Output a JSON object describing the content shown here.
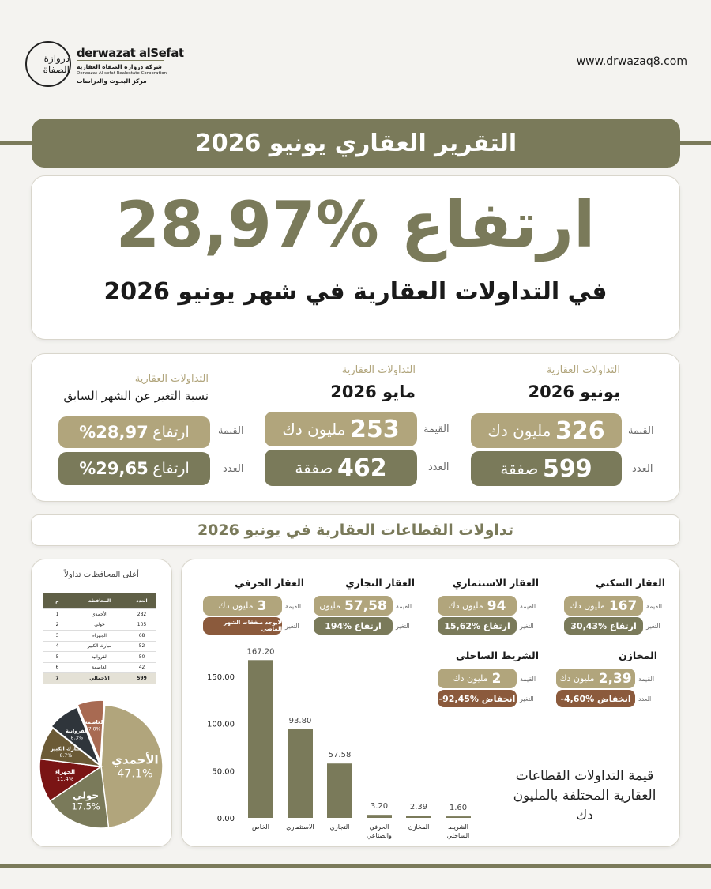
{
  "header": {
    "brand": "derwazat alSefat",
    "company_ar": "شركة دروازة الصفاة العقارية",
    "company_en": "Derwazat Al-sefat Realestate Corporation",
    "dept_ar": "مركز البحوث والدراسات",
    "website": "www.drwazaq8.com",
    "logo_text": "دروازة الصفاة"
  },
  "title": "التقرير العقاري يونيو 2026",
  "hero": {
    "headline": "ارتفاع %28,97",
    "subline": "في التداولات العقارية في شهر يونيو 2026"
  },
  "comparison": {
    "june": {
      "caption": "التداولات العقارية",
      "period": "يونيو 2026",
      "value_label": "القيمة",
      "value_num": "326",
      "value_unit": "مليون دك",
      "count_label": "العدد",
      "count_num": "599",
      "count_unit": "صفقة"
    },
    "may": {
      "caption": "التداولات العقارية",
      "period": "مايو 2026",
      "value_label": "القيمة",
      "value_num": "253",
      "value_unit": "مليون دك",
      "count_label": "العدد",
      "count_num": "462",
      "count_unit": "صفقة"
    },
    "change": {
      "caption": "التداولات العقارية",
      "period": "نسبة التغير عن الشهر السابق",
      "value_label": "القيمة",
      "value_word": "ارتفاع",
      "value_num": "%28,97",
      "count_label": "العدد",
      "count_word": "ارتفاع",
      "count_num": "%29,65"
    }
  },
  "sectors_title": "تداولات القطاعات العقارية في يونيو 2026",
  "sectors": [
    {
      "name": "العقار السكني",
      "value_num": "167",
      "value_unit": "مليون دك",
      "value_label": "القيمة",
      "change_label": "التغير",
      "change": "ارتفاع %30,43",
      "change_color": "#7a7a5a"
    },
    {
      "name": "العقار الاستثماري",
      "value_num": "94",
      "value_unit": "مليون دك",
      "value_label": "القيمة",
      "change_label": "التغير",
      "change": "ارتفاع %15,62",
      "change_color": "#7a7a5a"
    },
    {
      "name": "العقار التجاري",
      "value_num": "57,58",
      "value_unit": "مليون",
      "value_label": "القيمة",
      "change_label": "التغير",
      "change": "ارتفاع %194",
      "change_color": "#7a7a5a"
    },
    {
      "name": "العقار الحرفي",
      "value_num": "3",
      "value_unit": "مليون دك",
      "value_label": "القيمة",
      "change_label": "التغير",
      "change": "لايوجد صفقات الشهر الماضي",
      "change_color": "#8b5a3c"
    },
    {
      "name": "المخازن",
      "value_num": "2,39",
      "value_unit": "مليون دك",
      "value_label": "القيمة",
      "change_label": "العدد",
      "change": "انخفاض %4,60-",
      "change_color": "#8b5a3c"
    },
    {
      "name": "الشريط الساحلي",
      "value_num": "2",
      "value_unit": "مليون دك",
      "value_label": "القيمة",
      "change_label": "التغير",
      "change": "انخفاض %92,45-",
      "change_color": "#8b5a3c"
    }
  ],
  "bar_caption": "قيمة التداولات القطاعات العقارية المختلفة بالمليون دك",
  "chart_data": [
    {
      "type": "bar",
      "categories": [
        "الخاص",
        "الاستثماري",
        "التجاري",
        "الحرفي والصناعي",
        "المخازن",
        "الشريط الساحلي"
      ],
      "values": [
        167.2,
        93.8,
        57.58,
        3.2,
        2.39,
        1.6
      ],
      "value_labels": [
        "167.20",
        "93.80",
        "57.58",
        "3.20",
        "2.39",
        "1.60"
      ],
      "yticks": [
        "0.00",
        "50.00",
        "100.00",
        "150.00"
      ],
      "ylim": [
        0,
        180
      ],
      "color": "#7a7a5a"
    },
    {
      "type": "pie",
      "labels": [
        "الأحمدي",
        "حولي",
        "الجهراء",
        "مبارك الكبير",
        "الفروانية",
        "العاصمة"
      ],
      "values": [
        47.1,
        17.5,
        11.4,
        8.7,
        8.3,
        7.0
      ],
      "value_labels": [
        "47.1%",
        "17.5%",
        "11.4%",
        "8.7%",
        "8.3%",
        "7.0%"
      ],
      "colors": [
        "#b1a57c",
        "#7a7a5a",
        "#7a1414",
        "#6b5a36",
        "#2f353b",
        "#a86a52"
      ]
    }
  ],
  "governorates": {
    "title": "أعلى المحافظات تداولاً",
    "headers": [
      "م",
      "المحافظة",
      "العدد"
    ],
    "rows": [
      [
        "1",
        "الأحمدي",
        "282"
      ],
      [
        "2",
        "حولي",
        "105"
      ],
      [
        "3",
        "الجهراء",
        "68"
      ],
      [
        "4",
        "مبارك الكبير",
        "52"
      ],
      [
        "5",
        "الفروانية",
        "50"
      ],
      [
        "6",
        "العاصمة",
        "42"
      ],
      [
        "7",
        "الاجمالي",
        "599"
      ]
    ]
  }
}
